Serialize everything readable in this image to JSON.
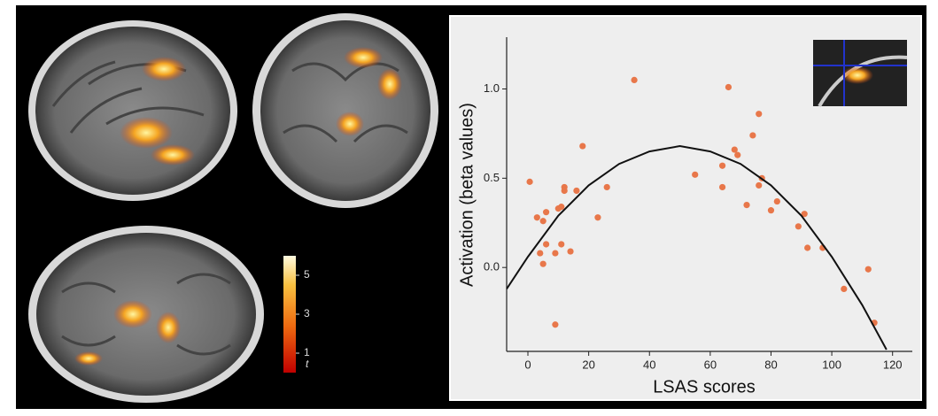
{
  "chart_data": {
    "type": "scatter",
    "x_label": "LSAS scores",
    "y_label": "Activation (beta values)",
    "xlim": [
      -7,
      126.5
    ],
    "ylim": [
      -0.47,
      1.29
    ],
    "xticks": [
      0,
      20,
      40,
      60,
      80,
      100,
      120
    ],
    "yticks": [
      {
        "value": 0,
        "label": "0.0"
      },
      0.5,
      {
        "value": 1,
        "label": "1.0"
      }
    ],
    "series": [
      {
        "type": "scatter",
        "color": "#e8774a",
        "x": [
          0.6,
          3,
          5,
          4,
          5,
          6,
          6,
          9,
          9,
          10,
          11,
          11,
          12,
          12,
          14,
          16,
          18,
          23,
          26,
          35,
          55,
          64,
          64,
          66,
          68,
          69,
          72,
          74,
          76,
          76,
          77,
          80,
          82,
          89,
          91,
          92,
          97,
          104,
          112,
          114
        ],
        "values": [
          0.48,
          0.28,
          0.26,
          0.08,
          0.02,
          0.31,
          0.13,
          0.08,
          -0.32,
          0.33,
          0.34,
          0.13,
          0.45,
          0.43,
          0.09,
          0.43,
          0.68,
          0.28,
          0.45,
          1.05,
          0.52,
          0.57,
          0.45,
          1.01,
          0.66,
          0.63,
          0.35,
          0.74,
          0.86,
          0.46,
          0.5,
          0.32,
          0.37,
          0.23,
          0.3,
          0.11,
          0.11,
          -0.12,
          -0.01,
          -0.31
        ]
      },
      {
        "type": "line",
        "color": "#111111",
        "x": [
          -7,
          0,
          10,
          20,
          30,
          40,
          50,
          60,
          70,
          80,
          90,
          100,
          110,
          118
        ],
        "values": [
          -0.12,
          0.06,
          0.29,
          0.46,
          0.58,
          0.65,
          0.68,
          0.65,
          0.58,
          0.46,
          0.29,
          0.06,
          -0.21,
          -0.46
        ]
      }
    ],
    "colorbar": {
      "label": "t",
      "lim": [
        0,
        6
      ],
      "ticks": [
        1,
        3,
        5
      ]
    }
  }
}
